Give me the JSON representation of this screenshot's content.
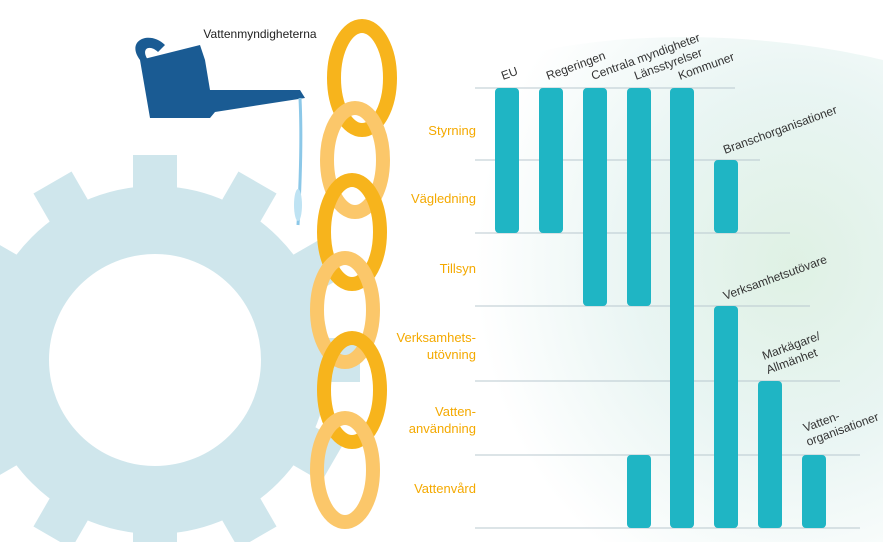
{
  "source": {
    "label": "Vattenmyndigheterna"
  },
  "rows": [
    [
      "Styrning"
    ],
    [
      "Vägledning"
    ],
    [
      "Tillsyn"
    ],
    [
      "Verksamhets-",
      "utövning"
    ],
    [
      "Vatten-",
      "användning"
    ],
    [
      "Vattenvård"
    ]
  ],
  "actors": [
    [
      "EU"
    ],
    [
      "Regeringen"
    ],
    [
      "Centrala myndigheter"
    ],
    [
      "Länsstyrelser"
    ],
    [
      "Kommuner"
    ],
    [
      "Branschorganisationer"
    ],
    [
      "Verksamhetsutövare"
    ],
    [
      "Markägare/",
      "Allmänhet"
    ],
    [
      "Vatten-",
      "organisationer"
    ]
  ]
}
